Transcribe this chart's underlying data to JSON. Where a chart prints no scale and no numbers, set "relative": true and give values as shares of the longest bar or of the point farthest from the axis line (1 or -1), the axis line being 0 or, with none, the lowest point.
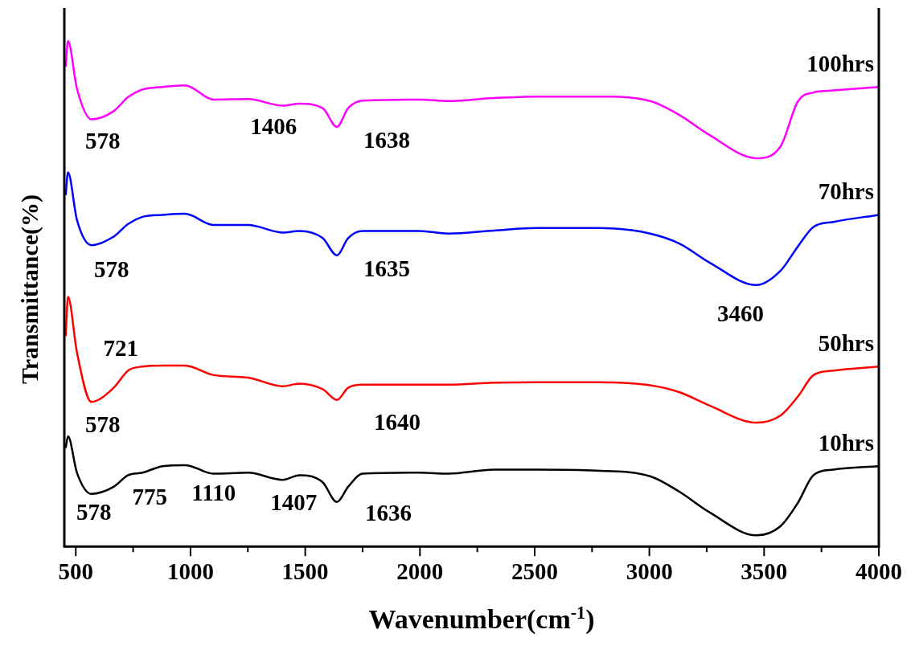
{
  "chart_data": {
    "type": "line",
    "relative": true,
    "xlabel": "Wavenumber(cm$^{-1}$)",
    "ylabel": "Transmittance(%)",
    "x": [
      456,
      466,
      505,
      568,
      665,
      728,
      791,
      878,
      976,
      1101,
      1251,
      1401,
      1475,
      1576,
      1638,
      1687,
      1750,
      1998,
      2123,
      2322,
      2511,
      2769,
      3003,
      3132,
      3261,
      3467,
      3571,
      3648,
      3715,
      3802,
      4000
    ],
    "xlim": [
      450,
      4000
    ],
    "xticks": [
      500,
      {
        "value": 750,
        "label": null
      },
      1000,
      {
        "value": 1250,
        "label": null
      },
      1500,
      {
        "value": 1750,
        "label": null
      },
      2000,
      {
        "value": 2250,
        "label": null
      },
      2500,
      {
        "value": 2750,
        "label": null
      },
      3000,
      {
        "value": 3250,
        "label": null
      },
      3500,
      {
        "value": 3750,
        "label": null
      },
      4000
    ],
    "tick_labels": "x",
    "grid": false,
    "legend": false,
    "marker": "none",
    "line_style": "solid",
    "series": [
      {
        "name": "10hrs",
        "color": "#000000",
        "values": [
          0.195,
          0.218,
          0.146,
          0.104,
          0.118,
          0.141,
          0.146,
          0.159,
          0.161,
          0.144,
          0.146,
          0.132,
          0.141,
          0.127,
          0.088,
          0.118,
          0.144,
          0.146,
          0.144,
          0.152,
          0.152,
          0.15,
          0.139,
          0.108,
          0.068,
          0.022,
          0.04,
          0.087,
          0.141,
          0.152,
          0.159
        ]
      },
      {
        "name": "50hrs",
        "color": "#ff0000",
        "values": [
          0.416,
          0.494,
          0.384,
          0.286,
          0.314,
          0.348,
          0.356,
          0.358,
          0.358,
          0.339,
          0.334,
          0.317,
          0.322,
          0.311,
          0.29,
          0.314,
          0.32,
          0.32,
          0.32,
          0.324,
          0.325,
          0.325,
          0.319,
          0.305,
          0.279,
          0.245,
          0.259,
          0.297,
          0.339,
          0.348,
          0.356
        ]
      },
      {
        "name": "70hrs",
        "color": "#0000ff",
        "values": [
          0.695,
          0.74,
          0.646,
          0.596,
          0.613,
          0.638,
          0.652,
          0.656,
          0.658,
          0.636,
          0.636,
          0.621,
          0.624,
          0.61,
          0.576,
          0.61,
          0.624,
          0.624,
          0.619,
          0.625,
          0.63,
          0.63,
          0.619,
          0.599,
          0.562,
          0.517,
          0.545,
          0.594,
          0.632,
          0.642,
          0.656
        ]
      },
      {
        "name": "100hrs",
        "color": "#ff00ff",
        "values": [
          0.949,
          1.0,
          0.906,
          0.845,
          0.861,
          0.889,
          0.904,
          0.909,
          0.912,
          0.884,
          0.885,
          0.872,
          0.876,
          0.867,
          0.83,
          0.867,
          0.882,
          0.884,
          0.881,
          0.887,
          0.89,
          0.89,
          0.881,
          0.853,
          0.814,
          0.768,
          0.791,
          0.881,
          0.898,
          0.902,
          0.909
        ]
      }
    ],
    "annotations": [
      {
        "text": "578",
        "x": 568,
        "y": 0.845
      },
      {
        "text": "1406",
        "x": 1401,
        "y": 0.872
      },
      {
        "text": "1638",
        "x": 1638,
        "y": 0.83
      },
      {
        "text": "578",
        "x": 568,
        "y": 0.596
      },
      {
        "text": "1635",
        "x": 1638,
        "y": 0.576
      },
      {
        "text": "3460",
        "x": 3467,
        "y": 0.517
      },
      {
        "text": "721",
        "x": 728,
        "y": 0.348
      },
      {
        "text": "578",
        "x": 568,
        "y": 0.286
      },
      {
        "text": "1640",
        "x": 1638,
        "y": 0.29
      },
      {
        "text": "578",
        "x": 568,
        "y": 0.104
      },
      {
        "text": "775",
        "x": 791,
        "y": 0.146
      },
      {
        "text": "1110",
        "x": 1101,
        "y": 0.144
      },
      {
        "text": "1407",
        "x": 1401,
        "y": 0.132
      },
      {
        "text": "1636",
        "x": 1638,
        "y": 0.088
      }
    ]
  }
}
